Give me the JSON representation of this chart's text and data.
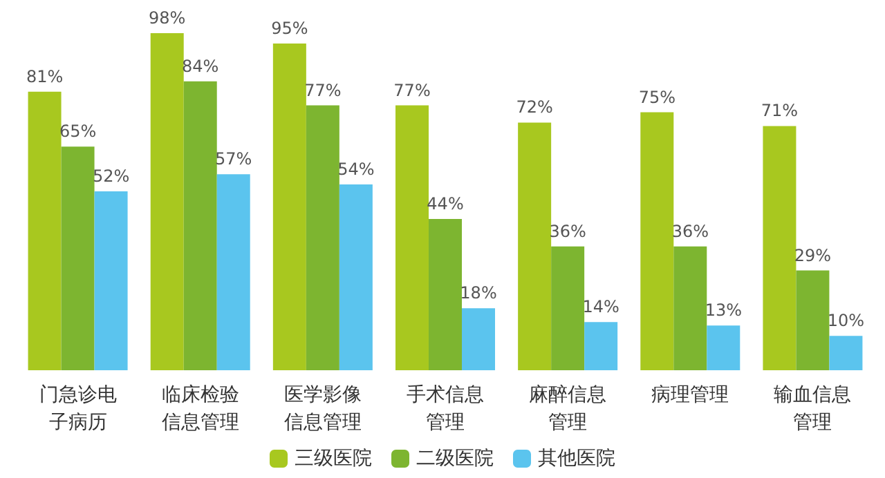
{
  "chart_data": {
    "type": "bar",
    "categories": [
      "门急诊电子病历",
      "临床检验信息管理",
      "医学影像信息管理",
      "手术信息管理",
      "麻醉信息管理",
      "病理管理",
      "输血信息管理"
    ],
    "series": [
      {
        "name": "三级医院",
        "color": "#a8c81f",
        "values": [
          81,
          98,
          95,
          77,
          72,
          75,
          71
        ],
        "value_labels": [
          "81%",
          "98%",
          "95%",
          "77%",
          "72%",
          "75%",
          "71%"
        ]
      },
      {
        "name": "二级医院",
        "color": "#7db530",
        "values": [
          65,
          84,
          77,
          44,
          36,
          36,
          29
        ],
        "value_labels": [
          "65%",
          "84%",
          "77%",
          "44%",
          "36%",
          "36%",
          "29%"
        ]
      },
      {
        "name": "其他医院",
        "color": "#5bc4ee",
        "values": [
          52,
          57,
          54,
          18,
          14,
          13,
          10
        ],
        "value_labels": [
          "52%",
          "57%",
          "54%",
          "18%",
          "14%",
          "13%",
          "10%"
        ]
      }
    ],
    "legend": "bottom"
  }
}
